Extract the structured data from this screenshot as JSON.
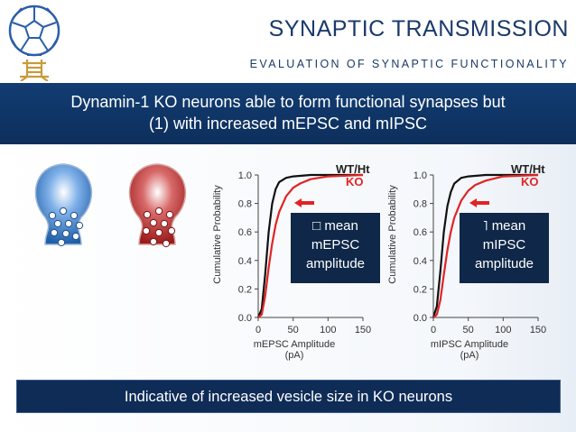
{
  "header": {
    "title": "SYNAPTIC TRANSMISSION",
    "subtitle": "EVALUATION OF SYNAPTIC FUNCTIONALITY"
  },
  "banner": {
    "line1": "Dynamin-1 KO neurons able to form functional synapses but",
    "line2": "(1) with increased mEPSC and mIPSC"
  },
  "illustration": {
    "terminal_colors": [
      "#1f5fa8",
      "#9c1b1b"
    ]
  },
  "chart_data": [
    {
      "type": "line",
      "xlabel": "mEPSC Amplitude",
      "xunit": "(pA)",
      "ylabel": "Cumulative Probability",
      "xlim": [
        0,
        150
      ],
      "ylim": [
        0,
        1.0
      ],
      "xticks": [
        "0",
        "50",
        "100",
        "150"
      ],
      "yticks": [
        "0.0",
        "0.2",
        "0.4",
        "0.6",
        "0.8",
        "1.0"
      ],
      "series": [
        {
          "name": "WT/Ht",
          "color": "#111111",
          "x": [
            0,
            5,
            10,
            15,
            20,
            25,
            30,
            40,
            50,
            75,
            100,
            150
          ],
          "y": [
            0,
            0.06,
            0.3,
            0.6,
            0.8,
            0.9,
            0.95,
            0.98,
            0.99,
            1.0,
            1.0,
            1.0
          ]
        },
        {
          "name": "KO",
          "color": "#e02424",
          "x": [
            0,
            5,
            10,
            15,
            20,
            25,
            30,
            40,
            50,
            60,
            75,
            100,
            150
          ],
          "y": [
            0,
            0.02,
            0.15,
            0.35,
            0.52,
            0.65,
            0.74,
            0.85,
            0.91,
            0.94,
            0.97,
            0.99,
            1.0
          ]
        }
      ],
      "callout": {
        "line1": "mean",
        "line2": "mEPSC",
        "line3": "amplitude",
        "symbol": "□"
      }
    },
    {
      "type": "line",
      "xlabel": "mIPSC Amplitude",
      "xunit": "(pA)",
      "ylabel": "Cumulative Probability",
      "xlim": [
        0,
        150
      ],
      "ylim": [
        0,
        1.0
      ],
      "xticks": [
        "0",
        "50",
        "100",
        "150"
      ],
      "yticks": [
        "0.0",
        "0.2",
        "0.4",
        "0.6",
        "0.8",
        "1.0"
      ],
      "series": [
        {
          "name": "WT/Ht",
          "color": "#111111",
          "x": [
            0,
            5,
            10,
            15,
            20,
            25,
            30,
            40,
            50,
            75,
            100,
            150
          ],
          "y": [
            0,
            0.08,
            0.32,
            0.6,
            0.78,
            0.88,
            0.94,
            0.98,
            0.99,
            1.0,
            1.0,
            1.0
          ]
        },
        {
          "name": "KO",
          "color": "#e02424",
          "x": [
            0,
            5,
            10,
            15,
            20,
            25,
            30,
            40,
            50,
            60,
            75,
            100,
            150
          ],
          "y": [
            0,
            0.02,
            0.12,
            0.3,
            0.47,
            0.6,
            0.7,
            0.82,
            0.89,
            0.93,
            0.96,
            0.99,
            1.0
          ]
        }
      ],
      "callout": {
        "line1": "mean",
        "line2": "mIPSC",
        "line3": "amplitude",
        "symbol": "˥"
      }
    }
  ],
  "footer": {
    "text": "Indicative of increased vesicle size in KO neurons"
  }
}
